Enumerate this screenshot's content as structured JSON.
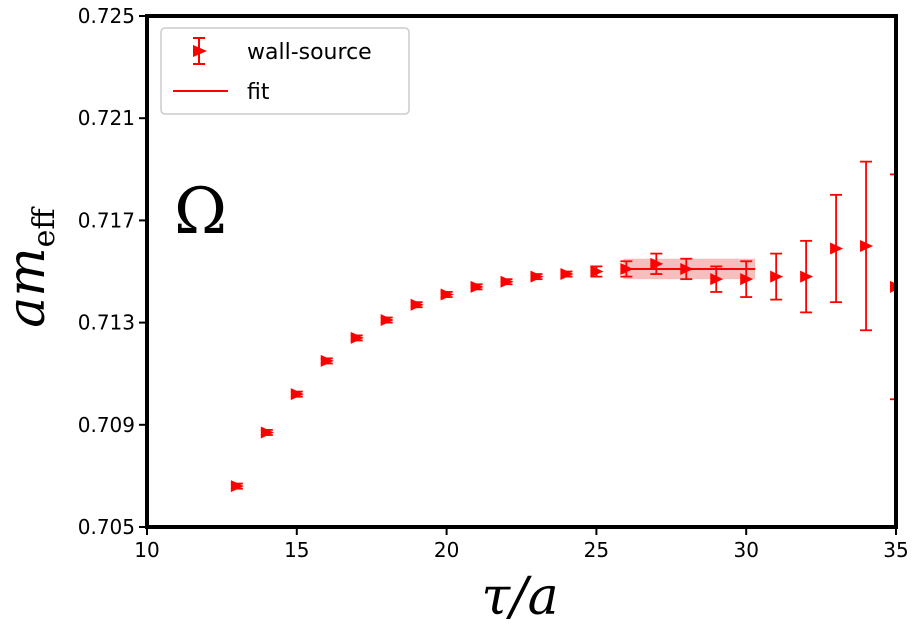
{
  "chart_data": {
    "type": "scatter",
    "xlabel": "τ/a",
    "ylabel_main": "am",
    "ylabel_sub": "eff",
    "annotation": "Ω",
    "xlim": [
      10,
      35
    ],
    "ylim": [
      0.705,
      0.725
    ],
    "xticks": [
      10,
      15,
      20,
      25,
      30,
      35
    ],
    "yticks": [
      "0.705",
      "0.709",
      "0.713",
      "0.717",
      "0.721",
      "0.725"
    ],
    "legend": {
      "position": "top-left",
      "series_label": "wall-source",
      "fit_label": "fit"
    },
    "color": "#ff0000",
    "band_color": "#f4a8a8",
    "series": [
      {
        "name": "wall-source",
        "points": [
          {
            "x": 13,
            "y": 0.7066,
            "err": 0.0001
          },
          {
            "x": 14,
            "y": 0.7087,
            "err": 0.0001
          },
          {
            "x": 15,
            "y": 0.7102,
            "err": 0.0001
          },
          {
            "x": 16,
            "y": 0.7115,
            "err": 0.0001
          },
          {
            "x": 17,
            "y": 0.7124,
            "err": 0.0001
          },
          {
            "x": 18,
            "y": 0.7131,
            "err": 0.0001
          },
          {
            "x": 19,
            "y": 0.7137,
            "err": 0.0001
          },
          {
            "x": 20,
            "y": 0.7141,
            "err": 0.0001
          },
          {
            "x": 21,
            "y": 0.7144,
            "err": 0.0001
          },
          {
            "x": 22,
            "y": 0.7146,
            "err": 0.0001
          },
          {
            "x": 23,
            "y": 0.7148,
            "err": 0.0001
          },
          {
            "x": 24,
            "y": 0.7149,
            "err": 0.0001
          },
          {
            "x": 25,
            "y": 0.715,
            "err": 0.0002
          },
          {
            "x": 26,
            "y": 0.7151,
            "err": 0.0003
          },
          {
            "x": 27,
            "y": 0.7153,
            "err": 0.0004
          },
          {
            "x": 28,
            "y": 0.7151,
            "err": 0.0004
          },
          {
            "x": 29,
            "y": 0.7147,
            "err": 0.0005
          },
          {
            "x": 30,
            "y": 0.7147,
            "err": 0.0007
          },
          {
            "x": 31,
            "y": 0.7148,
            "err": 0.0009
          },
          {
            "x": 32,
            "y": 0.7148,
            "err": 0.0014
          },
          {
            "x": 33,
            "y": 0.7159,
            "err": 0.0021
          },
          {
            "x": 34,
            "y": 0.716,
            "err": 0.0033
          },
          {
            "x": 35,
            "y": 0.7144,
            "err": 0.0044
          }
        ]
      }
    ],
    "fit": {
      "x_start": 26,
      "x_end": 30,
      "value": 0.7151,
      "err": 0.0004
    }
  }
}
